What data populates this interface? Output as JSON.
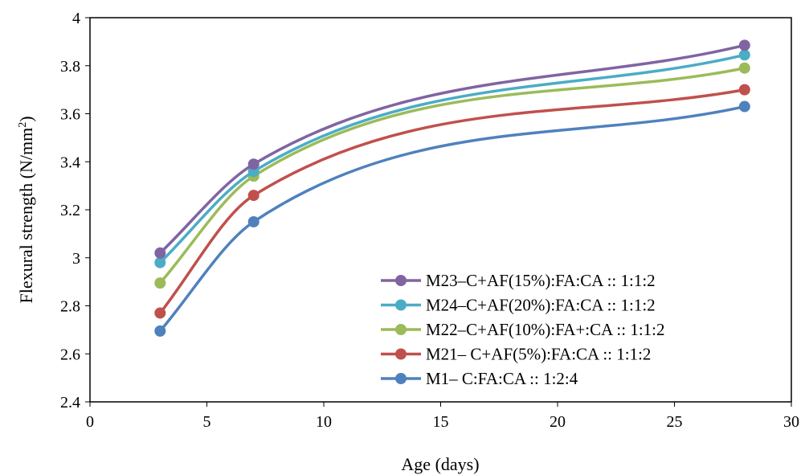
{
  "chart_data": {
    "type": "line",
    "title": "",
    "xlabel": "Age (days)",
    "ylabel": {
      "prefix": "Flexural strength (N/mm",
      "sup": "2",
      "suffix": ")"
    },
    "xlim": [
      0,
      30
    ],
    "ylim": [
      2.4,
      4
    ],
    "x_ticks": [
      0,
      5,
      10,
      15,
      20,
      25,
      30
    ],
    "y_ticks": [
      2.4,
      2.6,
      2.8,
      3,
      3.2,
      3.4,
      3.6,
      3.8,
      4
    ],
    "x_tick_labels": [
      "0",
      "5",
      "10",
      "15",
      "20",
      "25",
      "30"
    ],
    "y_tick_labels": [
      "2.4",
      "2.6",
      "2.8",
      "3",
      "3.2",
      "3.4",
      "3.6",
      "3.8",
      "4"
    ],
    "grid": false,
    "smooth": true,
    "legend_position": "bottom-right",
    "x": [
      3,
      7,
      28
    ],
    "series": [
      {
        "name": "M23–C+AF(15%):FA:CA :: 1:1:2",
        "color": "#8064a2",
        "values": [
          3.02,
          3.39,
          3.885
        ]
      },
      {
        "name": "M24–C+AF(20%):FA:CA :: 1:1:2",
        "color": "#4bacc6",
        "values": [
          2.98,
          3.36,
          3.845
        ]
      },
      {
        "name": "M22–C+AF(10%):FA+:CA :: 1:1:2",
        "color": "#9bbb59",
        "values": [
          2.895,
          3.34,
          3.79
        ]
      },
      {
        "name": "M21– C+AF(5%):FA:CA :: 1:1:2",
        "color": "#c0504d",
        "values": [
          2.77,
          3.26,
          3.7
        ]
      },
      {
        "name": "M1– C:FA:CA :: 1:2:4",
        "color": "#4f81bd",
        "values": [
          2.695,
          3.15,
          3.63
        ]
      }
    ]
  }
}
